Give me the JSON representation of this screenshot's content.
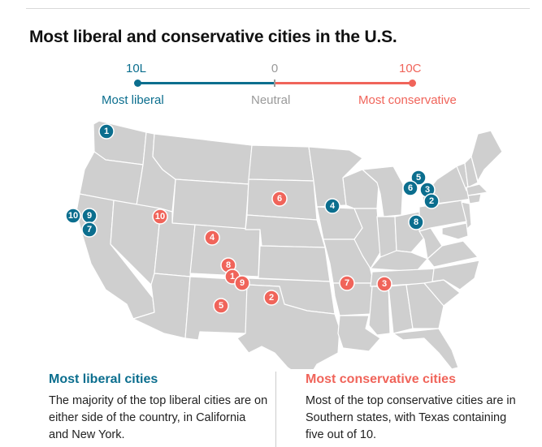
{
  "title": "Most liberal and conservative cities in the U.S.",
  "colors": {
    "liberal": "#0b6e8e",
    "conservative": "#f0645a",
    "neutral": "#9a9a9a",
    "land": "#cfcfcf"
  },
  "legend": {
    "left_value": "10L",
    "center_value": "0",
    "right_value": "10C",
    "left_label": "Most liberal",
    "center_label": "Neutral",
    "right_label": "Most conservative"
  },
  "liberal_markers": [
    "1",
    "2",
    "3",
    "4",
    "5",
    "6",
    "7",
    "8",
    "9",
    "10"
  ],
  "conservative_markers": [
    "1",
    "2",
    "3",
    "4",
    "5",
    "6",
    "7",
    "8",
    "9",
    "10"
  ],
  "liberal_section": {
    "heading": "Most liberal cities",
    "text": "The majority of the top liberal cities are on either side of the country, in California and New York."
  },
  "conservative_section": {
    "heading": "Most conservative cities",
    "text": "Most of the top conservative cities are in Southern states, with Texas containing five out of 10."
  }
}
